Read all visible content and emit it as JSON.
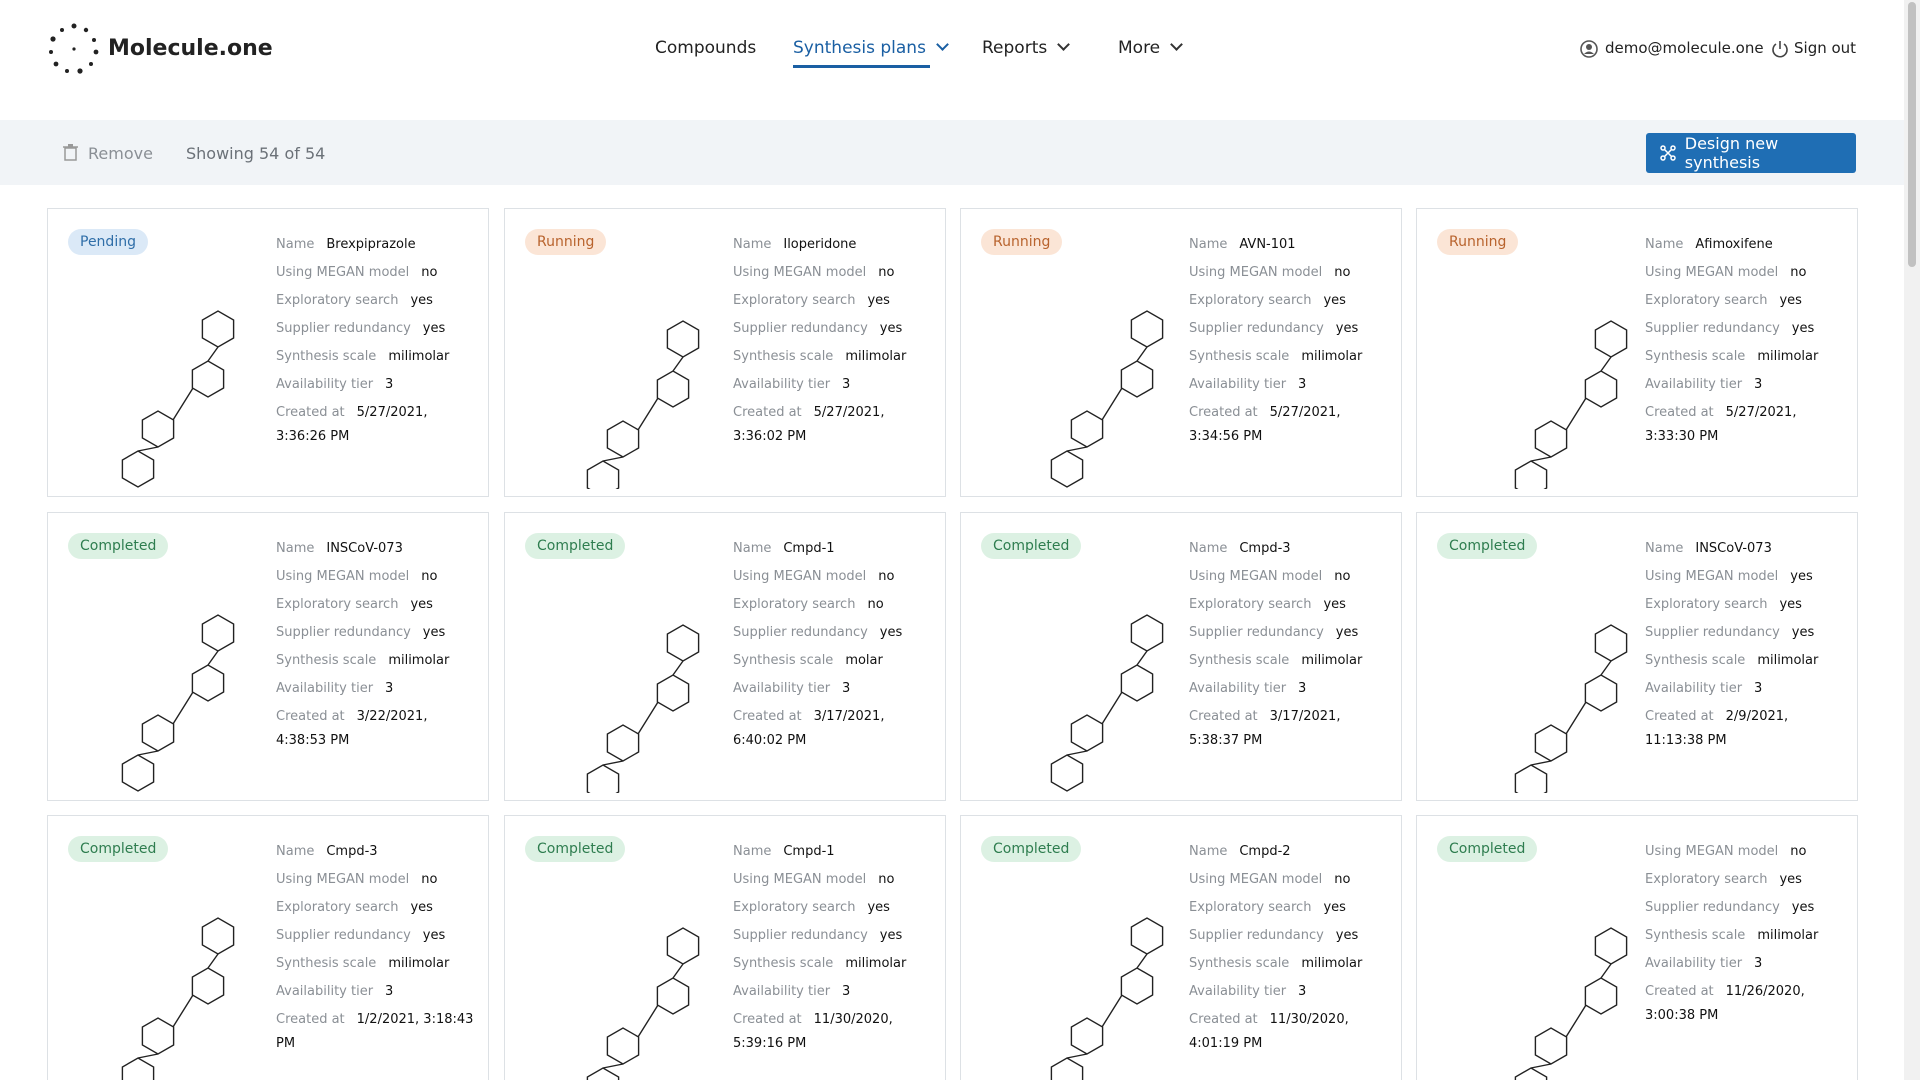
{
  "header": {
    "brand": "Molecule.one",
    "nav": [
      "Compounds",
      "Synthesis plans",
      "Reports",
      "More"
    ],
    "user": "demo@molecule.one",
    "sign_out": "Sign out"
  },
  "toolbar": {
    "remove": "Remove",
    "showing": "Showing 54 of 54",
    "design": "Design new synthesis"
  },
  "cards": [
    {
      "status": "Pending",
      "fields": [
        {
          "label": "Name",
          "value": "Brexpiprazole"
        },
        {
          "label": "Using MEGAN model",
          "value": "no"
        },
        {
          "label": "Exploratory search",
          "value": "yes"
        },
        {
          "label": "Supplier redundancy",
          "value": "yes"
        },
        {
          "label": "Synthesis scale",
          "value": "milimolar"
        },
        {
          "label": "Availability tier",
          "value": "3"
        },
        {
          "label": "Created at",
          "value": "5/27/2021, 3:36:26 PM"
        }
      ]
    },
    {
      "status": "Running",
      "fields": [
        {
          "label": "Name",
          "value": "Iloperidone"
        },
        {
          "label": "Using MEGAN model",
          "value": "no"
        },
        {
          "label": "Exploratory search",
          "value": "yes"
        },
        {
          "label": "Supplier redundancy",
          "value": "yes"
        },
        {
          "label": "Synthesis scale",
          "value": "milimolar"
        },
        {
          "label": "Availability tier",
          "value": "3"
        },
        {
          "label": "Created at",
          "value": "5/27/2021, 3:36:02 PM"
        }
      ]
    },
    {
      "status": "Running",
      "fields": [
        {
          "label": "Name",
          "value": "AVN-101"
        },
        {
          "label": "Using MEGAN model",
          "value": "no"
        },
        {
          "label": "Exploratory search",
          "value": "yes"
        },
        {
          "label": "Supplier redundancy",
          "value": "yes"
        },
        {
          "label": "Synthesis scale",
          "value": "milimolar"
        },
        {
          "label": "Availability tier",
          "value": "3"
        },
        {
          "label": "Created at",
          "value": "5/27/2021, 3:34:56 PM"
        }
      ]
    },
    {
      "status": "Running",
      "fields": [
        {
          "label": "Name",
          "value": "Afimoxifene"
        },
        {
          "label": "Using MEGAN model",
          "value": "no"
        },
        {
          "label": "Exploratory search",
          "value": "yes"
        },
        {
          "label": "Supplier redundancy",
          "value": "yes"
        },
        {
          "label": "Synthesis scale",
          "value": "milimolar"
        },
        {
          "label": "Availability tier",
          "value": "3"
        },
        {
          "label": "Created at",
          "value": "5/27/2021, 3:33:30 PM"
        }
      ]
    },
    {
      "status": "Completed",
      "fields": [
        {
          "label": "Name",
          "value": "INSCoV-073"
        },
        {
          "label": "Using MEGAN model",
          "value": "no"
        },
        {
          "label": "Exploratory search",
          "value": "yes"
        },
        {
          "label": "Supplier redundancy",
          "value": "yes"
        },
        {
          "label": "Synthesis scale",
          "value": "milimolar"
        },
        {
          "label": "Availability tier",
          "value": "3"
        },
        {
          "label": "Created at",
          "value": "3/22/2021, 4:38:53 PM"
        }
      ]
    },
    {
      "status": "Completed",
      "fields": [
        {
          "label": "Name",
          "value": "Cmpd-1"
        },
        {
          "label": "Using MEGAN model",
          "value": "no"
        },
        {
          "label": "Exploratory search",
          "value": "no"
        },
        {
          "label": "Supplier redundancy",
          "value": "yes"
        },
        {
          "label": "Synthesis scale",
          "value": "molar"
        },
        {
          "label": "Availability tier",
          "value": "3"
        },
        {
          "label": "Created at",
          "value": "3/17/2021, 6:40:02 PM"
        }
      ]
    },
    {
      "status": "Completed",
      "fields": [
        {
          "label": "Name",
          "value": "Cmpd-3"
        },
        {
          "label": "Using MEGAN model",
          "value": "no"
        },
        {
          "label": "Exploratory search",
          "value": "yes"
        },
        {
          "label": "Supplier redundancy",
          "value": "yes"
        },
        {
          "label": "Synthesis scale",
          "value": "milimolar"
        },
        {
          "label": "Availability tier",
          "value": "3"
        },
        {
          "label": "Created at",
          "value": "3/17/2021, 5:38:37 PM"
        }
      ]
    },
    {
      "status": "Completed",
      "fields": [
        {
          "label": "Name",
          "value": "INSCoV-073"
        },
        {
          "label": "Using MEGAN model",
          "value": "yes"
        },
        {
          "label": "Exploratory search",
          "value": "yes"
        },
        {
          "label": "Supplier redundancy",
          "value": "yes"
        },
        {
          "label": "Synthesis scale",
          "value": "milimolar"
        },
        {
          "label": "Availability tier",
          "value": "3"
        },
        {
          "label": "Created at",
          "value": "2/9/2021, 11:13:38 PM"
        }
      ]
    },
    {
      "status": "Completed",
      "fields": [
        {
          "label": "Name",
          "value": "Cmpd-3"
        },
        {
          "label": "Using MEGAN model",
          "value": "no"
        },
        {
          "label": "Exploratory search",
          "value": "yes"
        },
        {
          "label": "Supplier redundancy",
          "value": "yes"
        },
        {
          "label": "Synthesis scale",
          "value": "milimolar"
        },
        {
          "label": "Availability tier",
          "value": "3"
        },
        {
          "label": "Created at",
          "value": "1/2/2021, 3:18:43 PM"
        }
      ]
    },
    {
      "status": "Completed",
      "fields": [
        {
          "label": "Name",
          "value": "Cmpd-1"
        },
        {
          "label": "Using MEGAN model",
          "value": "no"
        },
        {
          "label": "Exploratory search",
          "value": "yes"
        },
        {
          "label": "Supplier redundancy",
          "value": "yes"
        },
        {
          "label": "Synthesis scale",
          "value": "milimolar"
        },
        {
          "label": "Availability tier",
          "value": "3"
        },
        {
          "label": "Created at",
          "value": "11/30/2020, 5:39:16 PM"
        }
      ]
    },
    {
      "status": "Completed",
      "fields": [
        {
          "label": "Name",
          "value": "Cmpd-2"
        },
        {
          "label": "Using MEGAN model",
          "value": "no"
        },
        {
          "label": "Exploratory search",
          "value": "yes"
        },
        {
          "label": "Supplier redundancy",
          "value": "yes"
        },
        {
          "label": "Synthesis scale",
          "value": "milimolar"
        },
        {
          "label": "Availability tier",
          "value": "3"
        },
        {
          "label": "Created at",
          "value": "11/30/2020, 4:01:19 PM"
        }
      ]
    },
    {
      "status": "Completed",
      "fields": [
        {
          "label": "Using MEGAN model",
          "value": "no"
        },
        {
          "label": "Exploratory search",
          "value": "yes"
        },
        {
          "label": "Supplier redundancy",
          "value": "yes"
        },
        {
          "label": "Synthesis scale",
          "value": "milimolar"
        },
        {
          "label": "Availability tier",
          "value": "3"
        },
        {
          "label": "Created at",
          "value": "11/26/2020, 3:00:38 PM"
        }
      ]
    }
  ]
}
